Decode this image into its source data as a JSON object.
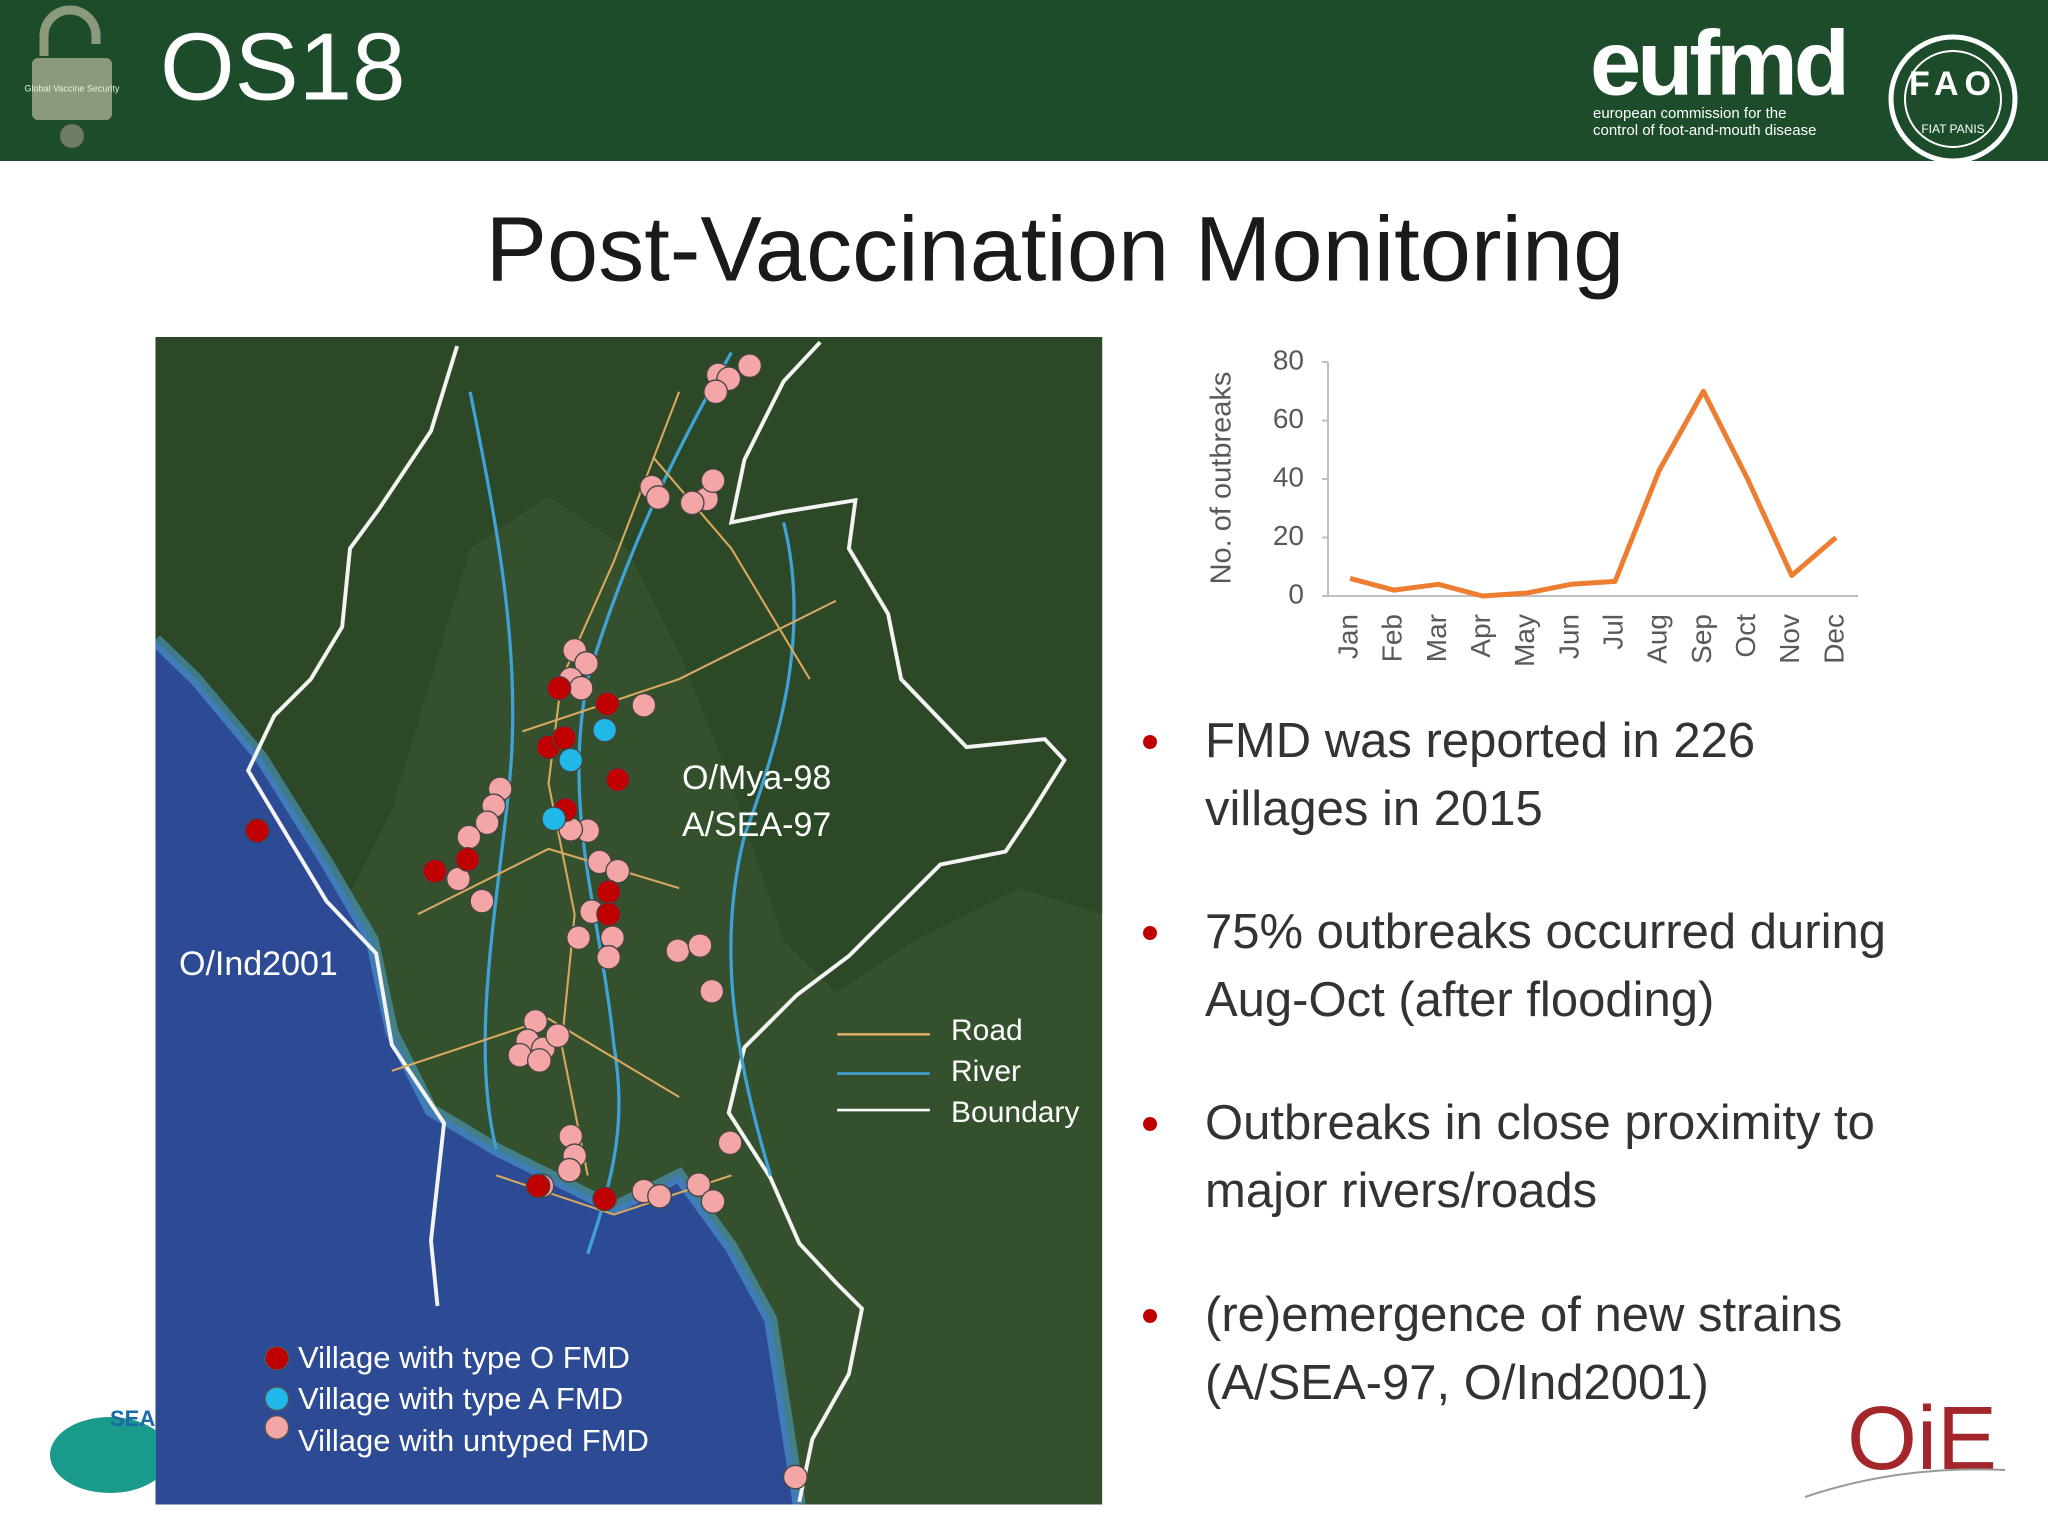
{
  "header": {
    "code": "OS18",
    "lock_text": "Global Vaccine Security",
    "eufmd_logo": "eufmd",
    "eufmd_subtitle": [
      "european commission for the",
      "control of foot-and-mouth disease"
    ],
    "fao_logo": "FAO",
    "fao_motto": "FIAT PANIS"
  },
  "title": "Post-Vaccination Monitoring",
  "map": {
    "strain_labels": [
      "O/Mya-98",
      "A/SEA-97",
      "O/Ind2001"
    ],
    "line_legend": [
      "Road",
      "River",
      "Boundary"
    ],
    "dot_legend": [
      "Village with type O FMD",
      "Village with type A FMD",
      "Village with untyped FMD"
    ]
  },
  "chart_data": {
    "type": "line",
    "y_label": "No. of outbreaks",
    "categories": [
      "Jan",
      "Feb",
      "Mar",
      "Apr",
      "May",
      "Jun",
      "Jul",
      "Aug",
      "Sep",
      "Oct",
      "Nov",
      "Dec"
    ],
    "series": [
      {
        "name": "Outbreaks",
        "color": "#ed7d31",
        "values": [
          6,
          2,
          4,
          0,
          1,
          4,
          5,
          43,
          70,
          40,
          7,
          20
        ]
      }
    ],
    "ylim": [
      0,
      80
    ],
    "yticks": [
      0,
      20,
      40,
      60,
      80
    ],
    "grid": false
  },
  "bullets": [
    [
      "FMD was reported in 226",
      "villages in 2015"
    ],
    [
      "75% outbreaks occurred during",
      "Aug-Oct (after flooding)"
    ],
    [
      "Outbreaks in close proximity to",
      "major rivers/roads"
    ],
    [
      "(re)emergence of new strains",
      "(A/SEA-97, O/Ind2001)"
    ]
  ],
  "footer": {
    "seac_logo": "SEAC",
    "oie_logo": "OiE"
  }
}
